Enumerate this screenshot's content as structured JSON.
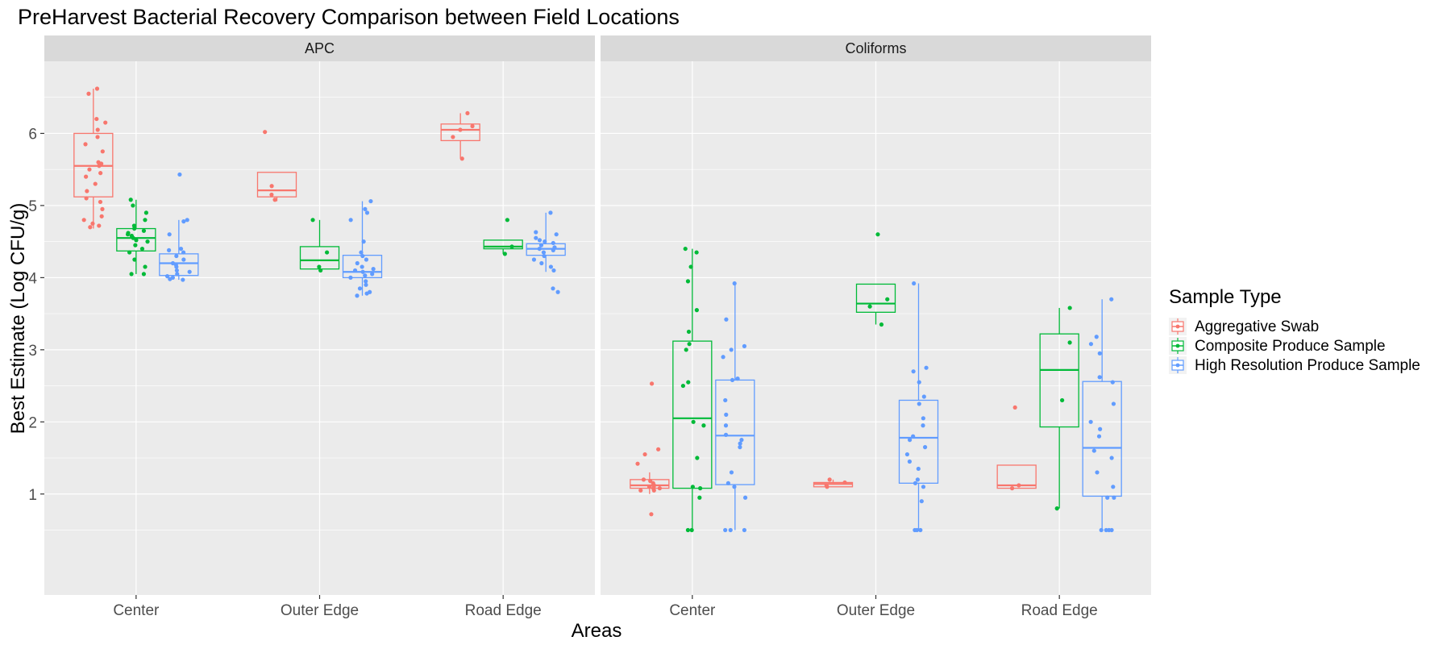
{
  "chart_data": {
    "type": "boxplot",
    "title": "PreHarvest Bacterial Recovery Comparison between Field Locations",
    "xlabel": "Areas",
    "ylabel": "Best Estimate (Log CFU/g)",
    "ylim": [
      -0.4,
      7.0
    ],
    "yticks": [
      1,
      2,
      3,
      4,
      5,
      6
    ],
    "grid": true,
    "legend": {
      "title": "Sample Type",
      "position": "right"
    },
    "categories": [
      "Center",
      "Outer Edge",
      "Road Edge"
    ],
    "series": [
      {
        "name": "Aggregative Swab",
        "color": "#F8766D"
      },
      {
        "name": "Composite Produce Sample",
        "color": "#00BA38"
      },
      {
        "name": "High Resolution Produce Sample",
        "color": "#619CFF"
      }
    ],
    "facets": [
      {
        "name": "APC",
        "boxes": [
          {
            "area": "Center",
            "series": 0,
            "whisker_low": 4.68,
            "q1": 5.12,
            "median": 5.55,
            "q3": 6.0,
            "whisker_high": 6.62,
            "points": [
              6.62,
              6.55,
              6.2,
              6.15,
              6.05,
              5.95,
              5.85,
              5.75,
              5.6,
              5.58,
              5.55,
              5.5,
              5.45,
              5.4,
              5.3,
              5.2,
              5.1,
              5.05,
              4.95,
              4.85,
              4.8,
              4.75,
              4.72,
              4.7
            ]
          },
          {
            "area": "Center",
            "series": 1,
            "whisker_low": 4.05,
            "q1": 4.37,
            "median": 4.55,
            "q3": 4.68,
            "whisker_high": 5.08,
            "points": [
              5.08,
              5.0,
              4.9,
              4.8,
              4.72,
              4.68,
              4.65,
              4.62,
              4.6,
              4.58,
              4.55,
              4.52,
              4.5,
              4.45,
              4.4,
              4.35,
              4.25,
              4.15,
              4.05,
              4.05
            ]
          },
          {
            "area": "Center",
            "series": 2,
            "whisker_low": 3.97,
            "q1": 4.03,
            "median": 4.2,
            "q3": 4.33,
            "whisker_high": 4.8,
            "points": [
              5.43,
              4.8,
              4.78,
              4.6,
              4.4,
              4.38,
              4.35,
              4.3,
              4.25,
              4.2,
              4.18,
              4.15,
              4.1,
              4.08,
              4.05,
              4.02,
              4.0,
              3.98,
              3.97
            ]
          },
          {
            "area": "Outer Edge",
            "series": 0,
            "whisker_low": 5.06,
            "q1": 5.12,
            "median": 5.21,
            "q3": 5.46,
            "whisker_high": 5.46,
            "points": [
              6.02,
              5.27,
              5.15,
              5.08
            ]
          },
          {
            "area": "Outer Edge",
            "series": 1,
            "whisker_low": 4.08,
            "q1": 4.12,
            "median": 4.24,
            "q3": 4.43,
            "whisker_high": 4.8,
            "points": [
              4.8,
              4.35,
              4.15,
              4.1
            ]
          },
          {
            "area": "Outer Edge",
            "series": 2,
            "whisker_low": 3.75,
            "q1": 4.0,
            "median": 4.08,
            "q3": 4.31,
            "whisker_high": 5.06,
            "points": [
              5.06,
              4.95,
              4.9,
              4.8,
              4.5,
              4.35,
              4.3,
              4.25,
              4.2,
              4.15,
              4.12,
              4.1,
              4.08,
              4.05,
              4.03,
              4.0,
              3.95,
              3.9,
              3.85,
              3.8,
              3.78,
              3.75
            ]
          },
          {
            "area": "Road Edge",
            "series": 0,
            "whisker_low": 5.65,
            "q1": 5.9,
            "median": 6.05,
            "q3": 6.13,
            "whisker_high": 6.28,
            "points": [
              6.28,
              6.1,
              6.05,
              5.95,
              5.65
            ]
          },
          {
            "area": "Road Edge",
            "series": 1,
            "whisker_low": 4.33,
            "q1": 4.4,
            "median": 4.43,
            "q3": 4.52,
            "whisker_high": 4.52,
            "points": [
              4.8,
              4.43,
              4.33
            ]
          },
          {
            "area": "Road Edge",
            "series": 2,
            "whisker_low": 4.08,
            "q1": 4.31,
            "median": 4.4,
            "q3": 4.47,
            "whisker_high": 4.9,
            "points": [
              4.9,
              4.63,
              4.6,
              4.55,
              4.52,
              4.5,
              4.48,
              4.45,
              4.42,
              4.4,
              4.38,
              4.35,
              4.3,
              4.25,
              4.2,
              4.15,
              4.1,
              3.85,
              3.8
            ]
          }
        ]
      },
      {
        "name": "Coliforms",
        "boxes": [
          {
            "area": "Center",
            "series": 0,
            "whisker_low": 1.0,
            "q1": 1.08,
            "median": 1.12,
            "q3": 1.2,
            "whisker_high": 1.3,
            "points": [
              2.53,
              1.62,
              1.55,
              1.42,
              1.2,
              1.18,
              1.15,
              1.12,
              1.1,
              1.1,
              1.08,
              1.08,
              1.05,
              1.05,
              0.72
            ]
          },
          {
            "area": "Center",
            "series": 1,
            "whisker_low": 0.5,
            "q1": 1.08,
            "median": 2.05,
            "q3": 3.12,
            "whisker_high": 4.4,
            "points": [
              4.4,
              4.35,
              4.15,
              3.95,
              3.55,
              3.25,
              3.08,
              3.0,
              2.55,
              2.5,
              2.0,
              1.95,
              1.5,
              1.1,
              1.08,
              0.95,
              0.5,
              0.5
            ]
          },
          {
            "area": "Center",
            "series": 2,
            "whisker_low": 0.5,
            "q1": 1.13,
            "median": 1.81,
            "q3": 2.58,
            "whisker_high": 3.92,
            "points": [
              3.92,
              3.42,
              3.05,
              3.0,
              2.9,
              2.6,
              2.58,
              2.3,
              2.1,
              1.95,
              1.82,
              1.75,
              1.7,
              1.65,
              1.3,
              1.15,
              1.1,
              0.95,
              0.5,
              0.5,
              0.5
            ]
          },
          {
            "area": "Outer Edge",
            "series": 0,
            "whisker_low": 1.1,
            "q1": 1.1,
            "median": 1.14,
            "q3": 1.16,
            "whisker_high": 1.2,
            "points": [
              1.2,
              1.16,
              1.12,
              1.1
            ]
          },
          {
            "area": "Outer Edge",
            "series": 1,
            "whisker_low": 3.35,
            "q1": 3.52,
            "median": 3.64,
            "q3": 3.91,
            "whisker_high": 3.91,
            "points": [
              4.6,
              3.7,
              3.6,
              3.35
            ]
          },
          {
            "area": "Outer Edge",
            "series": 2,
            "whisker_low": 0.5,
            "q1": 1.15,
            "median": 1.78,
            "q3": 2.3,
            "whisker_high": 3.92,
            "points": [
              3.92,
              2.75,
              2.7,
              2.55,
              2.35,
              2.25,
              2.05,
              1.95,
              1.8,
              1.75,
              1.65,
              1.55,
              1.45,
              1.35,
              1.2,
              1.15,
              1.1,
              0.9,
              0.5,
              0.5,
              0.5
            ]
          },
          {
            "area": "Road Edge",
            "series": 0,
            "whisker_low": 1.08,
            "q1": 1.08,
            "median": 1.12,
            "q3": 1.4,
            "whisker_high": 1.4,
            "points": [
              2.2,
              1.12,
              1.08
            ]
          },
          {
            "area": "Road Edge",
            "series": 1,
            "whisker_low": 0.8,
            "q1": 1.93,
            "median": 2.72,
            "q3": 3.22,
            "whisker_high": 3.58,
            "points": [
              3.58,
              3.1,
              2.3,
              0.8
            ]
          },
          {
            "area": "Road Edge",
            "series": 2,
            "whisker_low": 0.5,
            "q1": 0.97,
            "median": 1.64,
            "q3": 2.56,
            "whisker_high": 3.7,
            "points": [
              3.7,
              3.18,
              3.08,
              2.95,
              2.62,
              2.55,
              2.25,
              2.0,
              1.9,
              1.8,
              1.6,
              1.5,
              1.3,
              1.1,
              0.95,
              0.95,
              0.5,
              0.5,
              0.5,
              0.5
            ]
          }
        ]
      }
    ]
  }
}
